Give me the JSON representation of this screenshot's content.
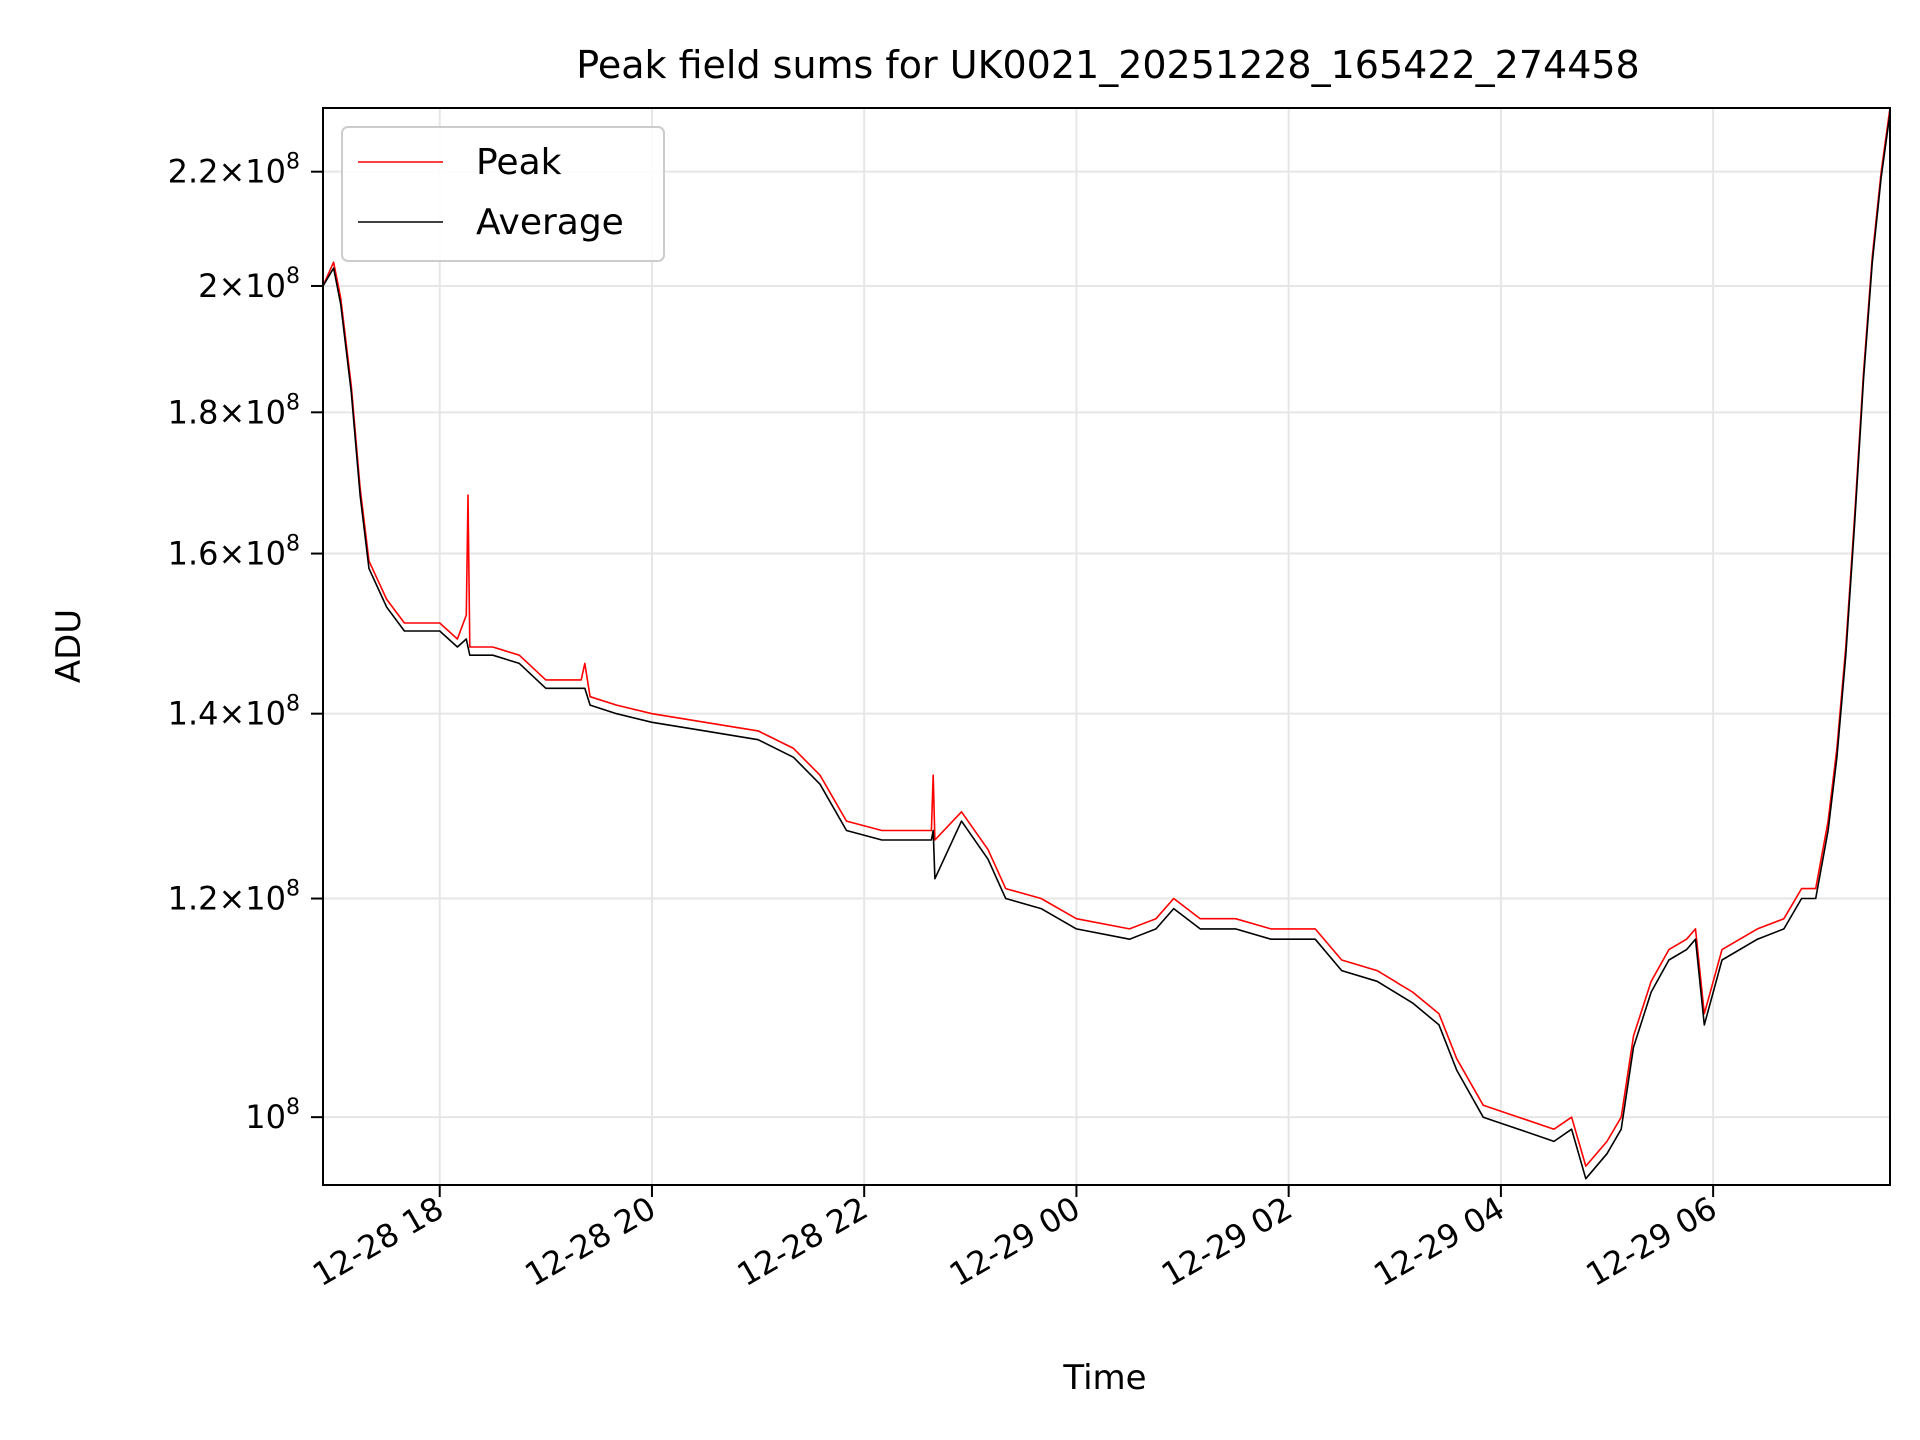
{
  "chart_data": {
    "type": "line",
    "title": "Peak field sums for UK0021_20251228_165422_274458",
    "xlabel": "Time",
    "ylabel": "ADU",
    "y_scale": "log",
    "ylim": [
      94500000.0,
      232000000.0
    ],
    "xlim": [
      "2025-12-28 16:54",
      "2025-12-29 07:40"
    ],
    "grid": true,
    "legend_position": "upper-left",
    "x_ticks": [
      {
        "value": "2025-12-28 18:00",
        "label": "12-28 18"
      },
      {
        "value": "2025-12-28 20:00",
        "label": "12-28 20"
      },
      {
        "value": "2025-12-28 22:00",
        "label": "12-28 22"
      },
      {
        "value": "2025-12-29 00:00",
        "label": "12-29 00"
      },
      {
        "value": "2025-12-29 02:00",
        "label": "12-29 02"
      },
      {
        "value": "2025-12-29 04:00",
        "label": "12-29 04"
      },
      {
        "value": "2025-12-29 06:00",
        "label": "12-29 06"
      }
    ],
    "y_ticks": [
      {
        "value": 100000000,
        "mant": "",
        "exp": "8"
      },
      {
        "value": 120000000,
        "mant": "1.2",
        "exp": "8"
      },
      {
        "value": 140000000,
        "mant": "1.4",
        "exp": "8"
      },
      {
        "value": 160000000,
        "mant": "1.6",
        "exp": "8"
      },
      {
        "value": 180000000,
        "mant": "1.8",
        "exp": "8"
      },
      {
        "value": 200000000,
        "mant": "2",
        "exp": "8"
      },
      {
        "value": 220000000,
        "mant": "2.2",
        "exp": "8"
      }
    ],
    "series": [
      {
        "name": "Peak",
        "color": "#ff0000",
        "points": [
          [
            "2025-12-28 16:54",
            200000000.0
          ],
          [
            "2025-12-28 17:00",
            204000000.0
          ],
          [
            "2025-12-28 17:04",
            198000000.0
          ],
          [
            "2025-12-28 17:10",
            184000000.0
          ],
          [
            "2025-12-28 17:15",
            169000000.0
          ],
          [
            "2025-12-28 17:20",
            159000000.0
          ],
          [
            "2025-12-28 17:30",
            154000000.0
          ],
          [
            "2025-12-28 17:40",
            151000000.0
          ],
          [
            "2025-12-28 18:00",
            151000000.0
          ],
          [
            "2025-12-28 18:10",
            149000000.0
          ],
          [
            "2025-12-28 18:15",
            152000000.0
          ],
          [
            "2025-12-28 18:16",
            168000000.0
          ],
          [
            "2025-12-28 18:17",
            148000000.0
          ],
          [
            "2025-12-28 18:30",
            148000000.0
          ],
          [
            "2025-12-28 18:45",
            147000000.0
          ],
          [
            "2025-12-28 19:00",
            144000000.0
          ],
          [
            "2025-12-28 19:20",
            144000000.0
          ],
          [
            "2025-12-28 19:22",
            146000000.0
          ],
          [
            "2025-12-28 19:25",
            142000000.0
          ],
          [
            "2025-12-28 19:40",
            141000000.0
          ],
          [
            "2025-12-28 20:00",
            140000000.0
          ],
          [
            "2025-12-28 20:30",
            139000000.0
          ],
          [
            "2025-12-28 21:00",
            138000000.0
          ],
          [
            "2025-12-28 21:20",
            136000000.0
          ],
          [
            "2025-12-28 21:35",
            133000000.0
          ],
          [
            "2025-12-28 21:50",
            128000000.0
          ],
          [
            "2025-12-28 22:10",
            127000000.0
          ],
          [
            "2025-12-28 22:30",
            127000000.0
          ],
          [
            "2025-12-28 22:38",
            127000000.0
          ],
          [
            "2025-12-28 22:39",
            133000000.0
          ],
          [
            "2025-12-28 22:40",
            126000000.0
          ],
          [
            "2025-12-28 22:55",
            129000000.0
          ],
          [
            "2025-12-28 23:10",
            125000000.0
          ],
          [
            "2025-12-28 23:20",
            121000000.0
          ],
          [
            "2025-12-28 23:40",
            120000000.0
          ],
          [
            "2025-12-29 00:00",
            118000000.0
          ],
          [
            "2025-12-29 00:30",
            117000000.0
          ],
          [
            "2025-12-29 00:45",
            118000000.0
          ],
          [
            "2025-12-29 00:55",
            120000000.0
          ],
          [
            "2025-12-29 01:10",
            118000000.0
          ],
          [
            "2025-12-29 01:30",
            118000000.0
          ],
          [
            "2025-12-29 01:50",
            117000000.0
          ],
          [
            "2025-12-29 02:15",
            117000000.0
          ],
          [
            "2025-12-29 02:30",
            114000000.0
          ],
          [
            "2025-12-29 02:50",
            113000000.0
          ],
          [
            "2025-12-29 03:10",
            111000000.0
          ],
          [
            "2025-12-29 03:25",
            109000000.0
          ],
          [
            "2025-12-29 03:35",
            105000000.0
          ],
          [
            "2025-12-29 03:50",
            101000000.0
          ],
          [
            "2025-12-29 04:10",
            100000000.0
          ],
          [
            "2025-12-29 04:30",
            99000000.0
          ],
          [
            "2025-12-29 04:40",
            100000000.0
          ],
          [
            "2025-12-29 04:48",
            96000000.0
          ],
          [
            "2025-12-29 05:00",
            98000000.0
          ],
          [
            "2025-12-29 05:08",
            100000000.0
          ],
          [
            "2025-12-29 05:15",
            107000000.0
          ],
          [
            "2025-12-29 05:25",
            112000000.0
          ],
          [
            "2025-12-29 05:35",
            115000000.0
          ],
          [
            "2025-12-29 05:45",
            116000000.0
          ],
          [
            "2025-12-29 05:50",
            117000000.0
          ],
          [
            "2025-12-29 05:55",
            109000000.0
          ],
          [
            "2025-12-29 06:05",
            115000000.0
          ],
          [
            "2025-12-29 06:25",
            117000000.0
          ],
          [
            "2025-12-29 06:40",
            118000000.0
          ],
          [
            "2025-12-29 06:50",
            121000000.0
          ],
          [
            "2025-12-29 06:58",
            121000000.0
          ],
          [
            "2025-12-29 07:05",
            128000000.0
          ],
          [
            "2025-12-29 07:10",
            136000000.0
          ],
          [
            "2025-12-29 07:15",
            148000000.0
          ],
          [
            "2025-12-29 07:20",
            165000000.0
          ],
          [
            "2025-12-29 07:25",
            186000000.0
          ],
          [
            "2025-12-29 07:30",
            205000000.0
          ],
          [
            "2025-12-29 07:35",
            220000000.0
          ],
          [
            "2025-12-29 07:40",
            232000000.0
          ]
        ]
      },
      {
        "name": "Average",
        "color": "#000000",
        "points": [
          [
            "2025-12-28 16:54",
            200000000.0
          ],
          [
            "2025-12-28 17:00",
            203000000.0
          ],
          [
            "2025-12-28 17:04",
            197000000.0
          ],
          [
            "2025-12-28 17:10",
            183000000.0
          ],
          [
            "2025-12-28 17:15",
            168000000.0
          ],
          [
            "2025-12-28 17:20",
            158000000.0
          ],
          [
            "2025-12-28 17:30",
            153000000.0
          ],
          [
            "2025-12-28 17:40",
            150000000.0
          ],
          [
            "2025-12-28 18:00",
            150000000.0
          ],
          [
            "2025-12-28 18:10",
            148000000.0
          ],
          [
            "2025-12-28 18:15",
            149000000.0
          ],
          [
            "2025-12-28 18:16",
            148000000.0
          ],
          [
            "2025-12-28 18:17",
            147000000.0
          ],
          [
            "2025-12-28 18:30",
            147000000.0
          ],
          [
            "2025-12-28 18:45",
            146000000.0
          ],
          [
            "2025-12-28 19:00",
            143000000.0
          ],
          [
            "2025-12-28 19:20",
            143000000.0
          ],
          [
            "2025-12-28 19:22",
            143000000.0
          ],
          [
            "2025-12-28 19:25",
            141000000.0
          ],
          [
            "2025-12-28 19:40",
            140000000.0
          ],
          [
            "2025-12-28 20:00",
            139000000.0
          ],
          [
            "2025-12-28 20:30",
            138000000.0
          ],
          [
            "2025-12-28 21:00",
            137000000.0
          ],
          [
            "2025-12-28 21:20",
            135000000.0
          ],
          [
            "2025-12-28 21:35",
            132000000.0
          ],
          [
            "2025-12-28 21:50",
            127000000.0
          ],
          [
            "2025-12-28 22:10",
            126000000.0
          ],
          [
            "2025-12-28 22:30",
            126000000.0
          ],
          [
            "2025-12-28 22:38",
            126000000.0
          ],
          [
            "2025-12-28 22:39",
            127000000.0
          ],
          [
            "2025-12-28 22:40",
            122000000.0
          ],
          [
            "2025-12-28 22:55",
            128000000.0
          ],
          [
            "2025-12-28 23:10",
            124000000.0
          ],
          [
            "2025-12-28 23:20",
            120000000.0
          ],
          [
            "2025-12-28 23:40",
            119000000.0
          ],
          [
            "2025-12-29 00:00",
            117000000.0
          ],
          [
            "2025-12-29 00:30",
            116000000.0
          ],
          [
            "2025-12-29 00:45",
            117000000.0
          ],
          [
            "2025-12-29 00:55",
            119000000.0
          ],
          [
            "2025-12-29 01:10",
            117000000.0
          ],
          [
            "2025-12-29 01:30",
            117000000.0
          ],
          [
            "2025-12-29 01:50",
            116000000.0
          ],
          [
            "2025-12-29 02:15",
            116000000.0
          ],
          [
            "2025-12-29 02:30",
            113000000.0
          ],
          [
            "2025-12-29 02:50",
            112000000.0
          ],
          [
            "2025-12-29 03:10",
            110000000.0
          ],
          [
            "2025-12-29 03:25",
            108000000.0
          ],
          [
            "2025-12-29 03:35",
            104000000.0
          ],
          [
            "2025-12-29 03:50",
            100000000.0
          ],
          [
            "2025-12-29 04:10",
            99000000.0
          ],
          [
            "2025-12-29 04:30",
            98000000.0
          ],
          [
            "2025-12-29 04:40",
            99000000.0
          ],
          [
            "2025-12-29 04:48",
            95000000.0
          ],
          [
            "2025-12-29 05:00",
            97000000.0
          ],
          [
            "2025-12-29 05:08",
            99000000.0
          ],
          [
            "2025-12-29 05:15",
            106000000.0
          ],
          [
            "2025-12-29 05:25",
            111000000.0
          ],
          [
            "2025-12-29 05:35",
            114000000.0
          ],
          [
            "2025-12-29 05:45",
            115000000.0
          ],
          [
            "2025-12-29 05:50",
            116000000.0
          ],
          [
            "2025-12-29 05:55",
            108000000.0
          ],
          [
            "2025-12-29 06:05",
            114000000.0
          ],
          [
            "2025-12-29 06:25",
            116000000.0
          ],
          [
            "2025-12-29 06:40",
            117000000.0
          ],
          [
            "2025-12-29 06:50",
            120000000.0
          ],
          [
            "2025-12-29 06:58",
            120000000.0
          ],
          [
            "2025-12-29 07:05",
            127000000.0
          ],
          [
            "2025-12-29 07:10",
            135000000.0
          ],
          [
            "2025-12-29 07:15",
            147000000.0
          ],
          [
            "2025-12-29 07:20",
            164000000.0
          ],
          [
            "2025-12-29 07:25",
            185000000.0
          ],
          [
            "2025-12-29 07:30",
            204000000.0
          ],
          [
            "2025-12-29 07:35",
            219000000.0
          ],
          [
            "2025-12-29 07:40",
            231000000.0
          ]
        ]
      }
    ]
  }
}
